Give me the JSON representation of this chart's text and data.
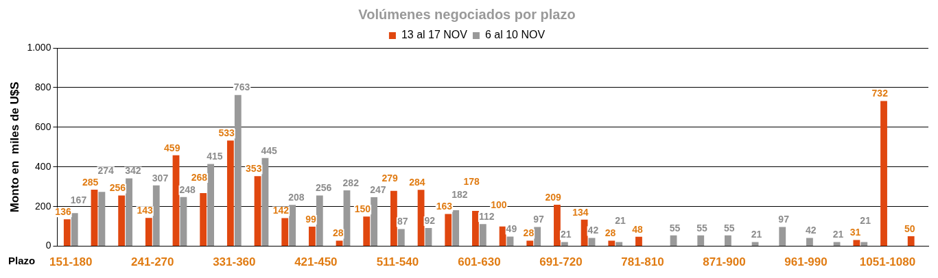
{
  "chart_data": {
    "type": "bar",
    "title": "Volúmenes negociados por plazo",
    "xlabel": "Plazo",
    "ylabel": "Monto en  miles de U$S",
    "categories": [
      "151-180",
      null,
      null,
      "241-270",
      null,
      null,
      "331-360",
      null,
      null,
      "421-450",
      null,
      null,
      "511-540",
      null,
      null,
      "601-630",
      null,
      null,
      "691-720",
      null,
      null,
      "781-810",
      null,
      null,
      "871-900",
      null,
      null,
      "961-990",
      null,
      null,
      "1051-1080",
      null
    ],
    "series": [
      {
        "name": "13 al 17 NOV",
        "color": "#e0470f",
        "values": [
          136,
          285,
          256,
          143,
          459,
          268,
          533,
          353,
          142,
          99,
          28,
          150,
          279,
          284,
          163,
          178,
          100,
          28,
          209,
          134,
          28,
          48,
          null,
          null,
          null,
          null,
          null,
          null,
          null,
          31,
          732,
          50
        ]
      },
      {
        "name": "6 al 10 NOV",
        "color": "#999999",
        "values": [
          167,
          274,
          342,
          307,
          248,
          415,
          763,
          445,
          208,
          256,
          282,
          247,
          87,
          92,
          182,
          112,
          49,
          97,
          21,
          42,
          21,
          null,
          55,
          55,
          55,
          21,
          97,
          42,
          21,
          21,
          null,
          null
        ]
      }
    ],
    "ylim": [
      0,
      1000
    ],
    "yticks": [
      0,
      200,
      400,
      600,
      800,
      {
        "value": 1000,
        "label": "1.000"
      }
    ],
    "grid": "y",
    "legend": "top",
    "data_labels": true
  }
}
